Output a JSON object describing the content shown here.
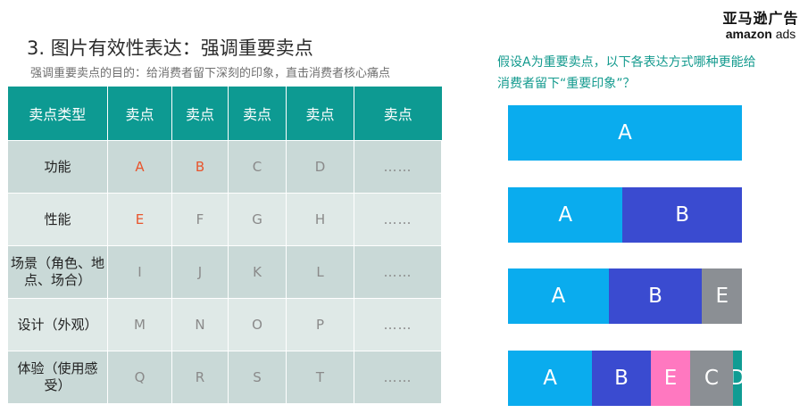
{
  "slide": {
    "title": "3. 图片有效性表达：强调重要卖点",
    "subtitle": "强调重要卖点的目的：给消费者留下深刻的印象，直击消费者核心痛点"
  },
  "logo": {
    "cn": "亚马逊广告",
    "en_a": "amazon",
    "en_b": "ads"
  },
  "question": "假设A为重要卖点，以下各表达方式哪种更能给消费者留下“重要印象”？",
  "table": {
    "headers": [
      "卖点类型",
      "卖点",
      "卖点",
      "卖点",
      "卖点",
      "卖点"
    ],
    "rows": [
      {
        "type": "功能",
        "cells": [
          "A",
          "B",
          "C",
          "D",
          "……"
        ]
      },
      {
        "type": "性能",
        "cells": [
          "E",
          "F",
          "G",
          "H",
          "……"
        ]
      },
      {
        "type": "场景（角色、地点、场合）",
        "cells": [
          "I",
          "J",
          "K",
          "L",
          "……"
        ]
      },
      {
        "type": "设计（外观）",
        "cells": [
          "M",
          "N",
          "O",
          "P",
          "……"
        ]
      },
      {
        "type": "体验（使用感受）",
        "cells": [
          "Q",
          "R",
          "S",
          "T",
          "……"
        ]
      }
    ]
  },
  "colors": {
    "A": "#0aacee",
    "B": "#3a4bd0",
    "E_gray": "#8b8f94",
    "E_pink": "#ff78c0",
    "C": "#8b8f94",
    "D": "#109c93",
    "highlight": "#e8552d"
  },
  "bars": [
    {
      "segments": [
        {
          "label": "A",
          "share": 1.0,
          "color": "#0aacee"
        }
      ]
    },
    {
      "segments": [
        {
          "label": "A",
          "share": 0.49,
          "color": "#0aacee"
        },
        {
          "label": "B",
          "share": 0.51,
          "color": "#3a4bd0"
        }
      ]
    },
    {
      "segments": [
        {
          "label": "A",
          "share": 0.43,
          "color": "#0aacee"
        },
        {
          "label": "B",
          "share": 0.4,
          "color": "#3a4bd0"
        },
        {
          "label": "E",
          "share": 0.17,
          "color": "#8b8f94"
        }
      ]
    },
    {
      "segments": [
        {
          "label": "A",
          "share": 0.36,
          "color": "#0aacee"
        },
        {
          "label": "B",
          "share": 0.25,
          "color": "#3a4bd0"
        },
        {
          "label": "E",
          "share": 0.17,
          "color": "#ff78c0"
        },
        {
          "label": "C",
          "share": 0.18,
          "color": "#8b8f94"
        },
        {
          "label": "D",
          "share": 0.04,
          "color": "#109c93"
        }
      ]
    }
  ]
}
